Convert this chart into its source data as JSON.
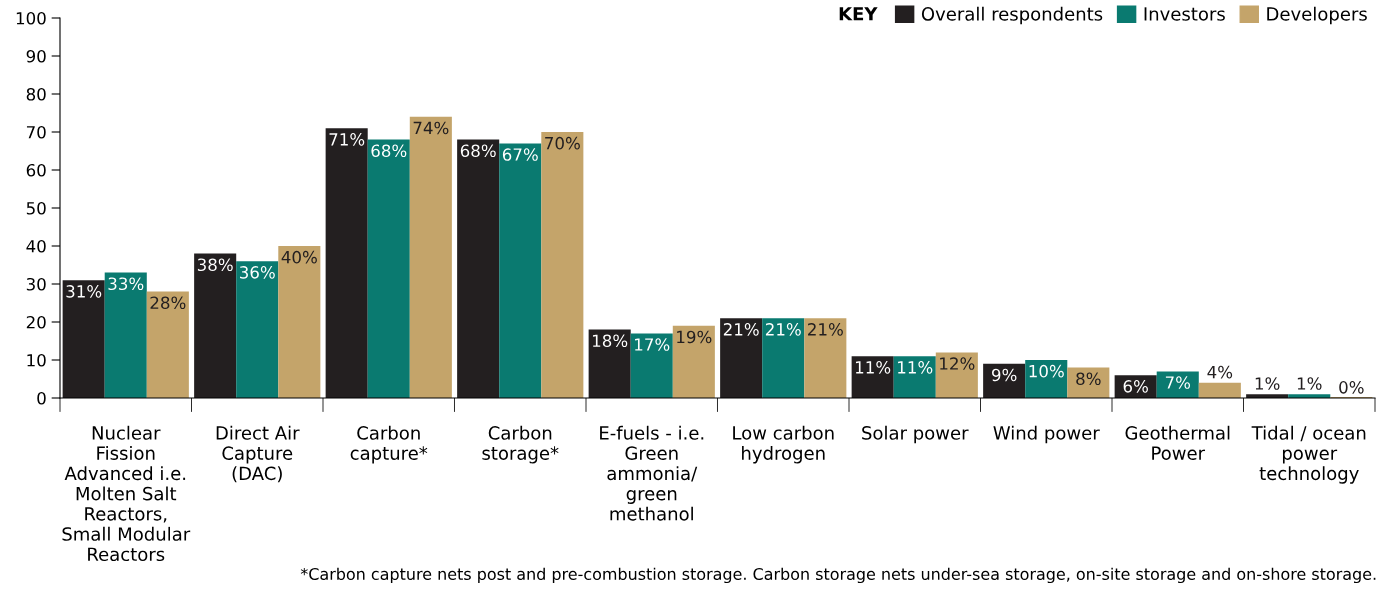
{
  "chart_data": {
    "type": "bar",
    "categories": [
      "Nuclear\nFission\nAdvanced i.e.\nMolten Salt\nReactors,\nSmall Modular\nReactors",
      "Direct Air\nCapture\n(DAC)",
      "Carbon\ncapture*",
      "Carbon\nstorage*",
      "E-fuels - i.e.\nGreen\nammonia/\ngreen\nmethanol",
      "Low carbon\nhydrogen",
      "Solar power",
      "Wind power",
      "Geothermal\nPower",
      "Tidal / ocean\npower\ntechnology"
    ],
    "series": [
      {
        "name": "Overall respondents",
        "color": "#231f20",
        "values": [
          31,
          38,
          71,
          68,
          18,
          21,
          11,
          9,
          6,
          1
        ],
        "value_labels": [
          "31%",
          "38%",
          "71%",
          "68%",
          "18%",
          "21%",
          "11%",
          "9%",
          "6%",
          "1%"
        ]
      },
      {
        "name": "Investors",
        "color": "#0a7a70",
        "values": [
          33,
          36,
          68,
          67,
          17,
          21,
          11,
          10,
          7,
          1
        ],
        "value_labels": [
          "33%",
          "36%",
          "68%",
          "67%",
          "17%",
          "21%",
          "11%",
          "10%",
          "7%",
          "1%"
        ]
      },
      {
        "name": "Developers",
        "color": "#c4a46a",
        "values": [
          28,
          40,
          74,
          70,
          19,
          21,
          12,
          8,
          4,
          0
        ],
        "value_labels": [
          "28%",
          "40%",
          "74%",
          "70%",
          "19%",
          "21%",
          "12%",
          "8%",
          "4%",
          "0%"
        ]
      }
    ],
    "legend_title": "KEY",
    "legend": "top right",
    "ylim": [
      0,
      100
    ],
    "yticks": [
      0,
      10,
      20,
      30,
      40,
      50,
      60,
      70,
      80,
      90,
      100
    ],
    "grid": false,
    "annotations": [
      "*Carbon capture nets post and pre-combustion storage. Carbon storage nets under-sea storage, on-site storage and on-shore storage."
    ]
  }
}
